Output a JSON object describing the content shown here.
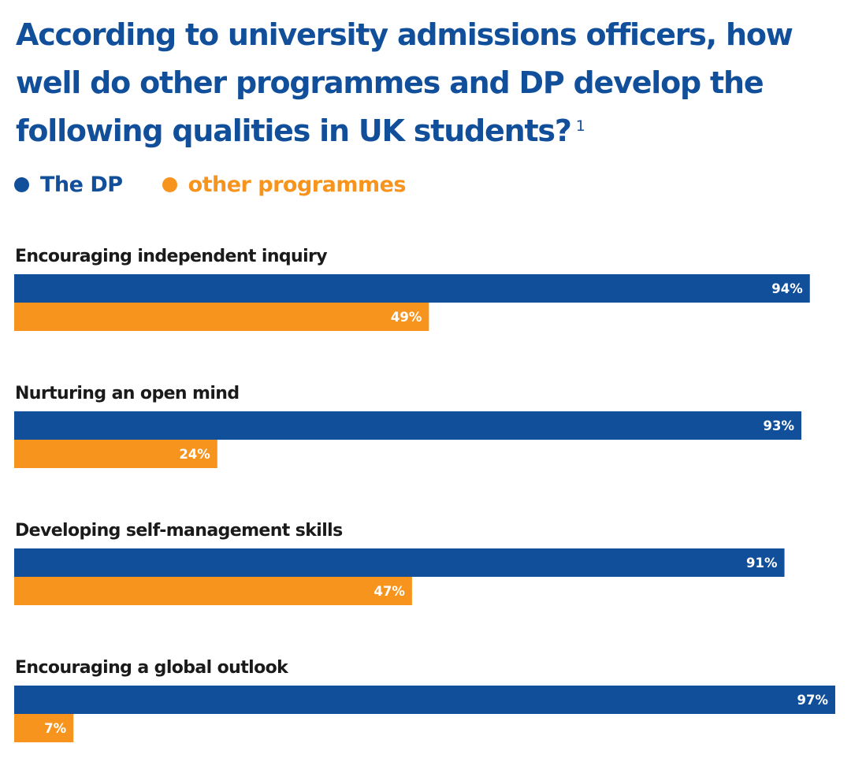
{
  "title": "According to university admissions officers, how well do other programmes and DP develop the following qualities in UK students?",
  "footnote_mark": "1",
  "colors": {
    "dp": "#114f9a",
    "other": "#f7941d"
  },
  "chart_data": {
    "type": "bar",
    "orientation": "horizontal",
    "categories": [
      "Encouraging independent inquiry",
      "Nurturing an open mind",
      "Developing self-management skills",
      "Encouraging a global outlook"
    ],
    "series": [
      {
        "name": "The DP",
        "values": [
          94,
          93,
          91,
          97
        ]
      },
      {
        "name": "other programmes",
        "values": [
          49,
          24,
          47,
          7
        ]
      }
    ],
    "value_labels": [
      [
        "94%",
        "93%",
        "91%",
        "97%"
      ],
      [
        "49%",
        "24%",
        "47%",
        "7%"
      ]
    ],
    "xlim": [
      0,
      97
    ],
    "legend_position": "top-left",
    "grid": false
  }
}
